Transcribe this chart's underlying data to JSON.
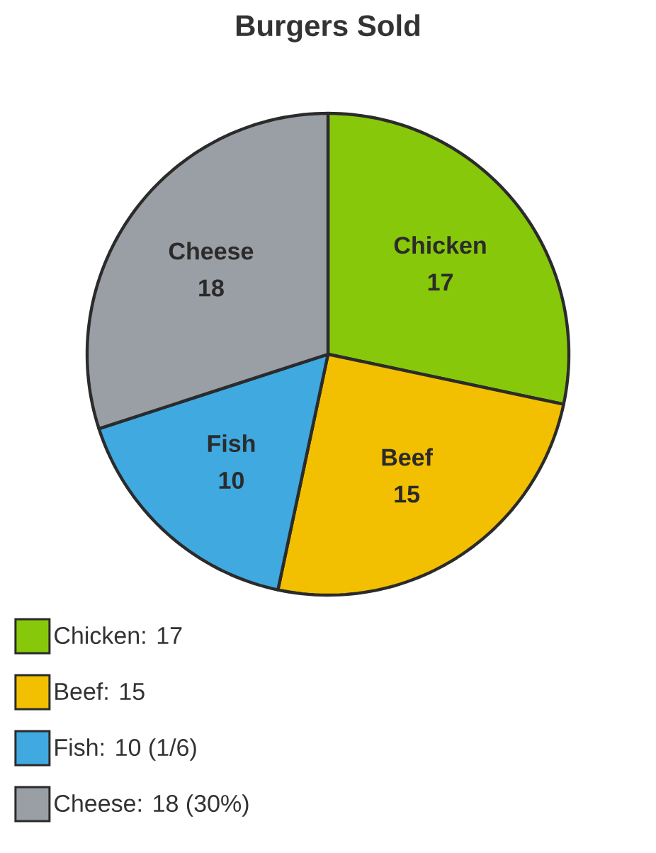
{
  "chart_data": {
    "type": "pie",
    "title": "Burgers Sold",
    "categories": [
      "Chicken",
      "Beef",
      "Fish",
      "Cheese"
    ],
    "values": [
      17,
      15,
      10,
      18
    ],
    "colors": [
      "#88c80a",
      "#f2c000",
      "#3fa9e0",
      "#9a9ea5"
    ],
    "data_labels": true,
    "legend": "bottom left",
    "annotations": [
      ": 17",
      ": 15",
      ": 10 (1/6)",
      ": 18 (30%)"
    ]
  }
}
